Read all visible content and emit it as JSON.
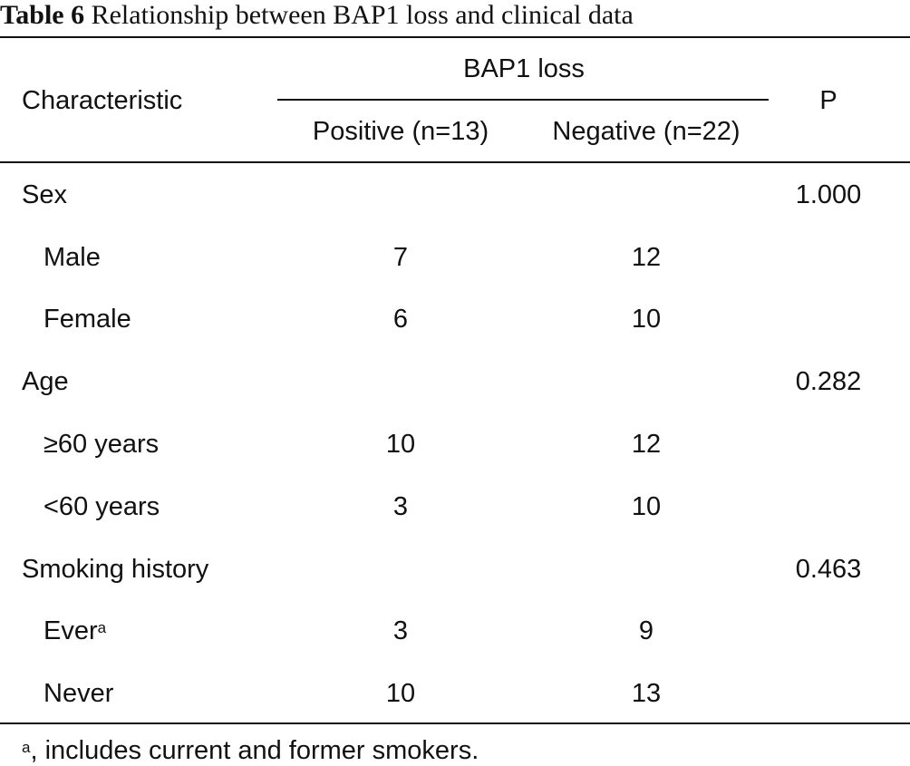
{
  "caption": {
    "label": "Table 6",
    "title": "Relationship between BAP1 loss and clinical data"
  },
  "header": {
    "characteristic": "Characteristic",
    "group": "BAP1 loss",
    "positive": "Positive (n=13)",
    "negative": "Negative (n=22)",
    "p": "P"
  },
  "rows": [
    {
      "label": "Sex",
      "p": "1.000"
    },
    {
      "label": "Male",
      "positive": "7",
      "negative": "12"
    },
    {
      "label": "Female",
      "positive": "6",
      "negative": "10"
    },
    {
      "label": "Age",
      "p": "0.282"
    },
    {
      "label": "≥60 years",
      "positive": "10",
      "negative": "12"
    },
    {
      "label": "<60 years",
      "positive": "3",
      "negative": "10"
    },
    {
      "label": "Smoking history",
      "p": "0.463"
    },
    {
      "label": "Ever",
      "sup": "a",
      "positive": "3",
      "negative": "9"
    },
    {
      "label": "Never",
      "positive": "10",
      "negative": "13"
    }
  ],
  "footnote": {
    "marker": "a",
    "text": ", includes current and former smokers."
  }
}
